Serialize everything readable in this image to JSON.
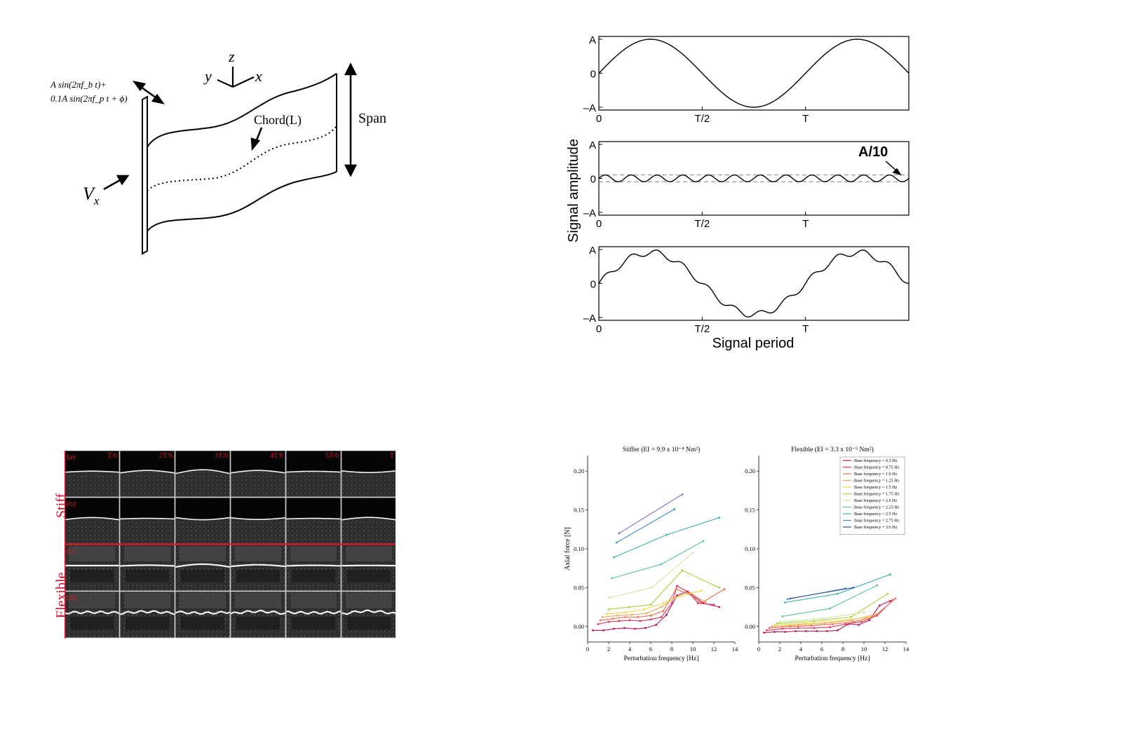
{
  "schematic": {
    "forcing_line1": "A sin(2πf_b t)+",
    "forcing_line2": "0.1A sin(2πf_p t + ϕ)",
    "axis_z": "z",
    "axis_y": "y",
    "axis_x": "x",
    "chord_label": "Chord(L)",
    "span_label": "Span",
    "vx_label": "V",
    "vx_sub": "x"
  },
  "signals": {
    "ylabel": "Signal amplitude",
    "xlabel": "Signal period",
    "y_ticks": [
      "A",
      "0",
      "–A"
    ],
    "x_ticks": [
      "0",
      "T/2",
      "T"
    ],
    "annotation": "A/10"
  },
  "frames": {
    "row_group_labels": [
      "Stiff",
      "Flexible"
    ],
    "row_labels": [
      "(a)",
      "(b)",
      "(c)",
      "(d)"
    ],
    "time_labels": [
      "T/6",
      "2T/6",
      "3T/6",
      "4T/6",
      "5T/6",
      "T"
    ],
    "row_shapes": [
      [
        0.2,
        0.45,
        0.7,
        0.45,
        0.15,
        -0.3
      ],
      [
        0.4,
        0.1,
        -0.4,
        -0.3,
        0.1,
        0.45
      ],
      [
        0.0,
        0.15,
        0.5,
        0.3,
        0.1,
        0.05
      ],
      [
        0.1,
        0.3,
        -0.2,
        0.4,
        -0.1,
        0.5
      ]
    ]
  },
  "chart_data": [
    {
      "type": "line",
      "title": "Stiffer (EI = 9.9 x 10⁻⁴ Nm²)",
      "xlabel": "Perturbation frequency [Hz]",
      "ylabel": "Axial force [N]",
      "xlim": [
        0,
        14
      ],
      "ylim": [
        -0.02,
        0.22
      ],
      "x_ticks": [
        0,
        2,
        4,
        6,
        8,
        10,
        12,
        14
      ],
      "y_ticks": [
        0.0,
        0.05,
        0.1,
        0.15,
        0.2
      ],
      "y_tick_labels": [
        "0.00",
        "0.05",
        "0.10",
        "0.15",
        "0.20"
      ],
      "series": [
        {
          "color": "#b5165b",
          "x": [
            0.5,
            1.5,
            2.5,
            3.5,
            4.5,
            5.5,
            6.5,
            7.5,
            8.5,
            9.5,
            11.0,
            12.5
          ],
          "y": [
            -0.005,
            -0.005,
            -0.003,
            -0.002,
            -0.003,
            -0.002,
            0.002,
            0.015,
            0.04,
            0.045,
            0.03,
            0.025
          ]
        },
        {
          "color": "#e0315d",
          "x": [
            1.0,
            2.0,
            3.0,
            4.0,
            5.0,
            6.0,
            7.0,
            8.0,
            8.5,
            9.5,
            10.5,
            12.0
          ],
          "y": [
            0.003,
            0.006,
            0.007,
            0.008,
            0.007,
            0.009,
            0.012,
            0.03,
            0.052,
            0.045,
            0.03,
            0.028
          ]
        },
        {
          "color": "#ee6a4a",
          "x": [
            1.2,
            2.4,
            3.6,
            4.8,
            6.0,
            7.2,
            8.4,
            9.6,
            10.8,
            13.0
          ],
          "y": [
            0.008,
            0.01,
            0.012,
            0.012,
            0.014,
            0.02,
            0.048,
            0.042,
            0.03,
            0.048
          ]
        },
        {
          "color": "#f4a35c",
          "x": [
            1.4,
            2.8,
            4.2,
            5.6,
            7.0,
            8.4,
            9.8,
            11.2
          ],
          "y": [
            0.012,
            0.014,
            0.015,
            0.017,
            0.025,
            0.038,
            0.043,
            0.031
          ]
        },
        {
          "color": "#ecd94a",
          "x": [
            1.8,
            3.6,
            5.4,
            7.2,
            9.0,
            10.8
          ],
          "y": [
            0.016,
            0.018,
            0.022,
            0.03,
            0.04,
            0.046
          ]
        },
        {
          "color": "#a8d23c",
          "x": [
            2.0,
            4.0,
            6.0,
            9.0,
            12.5
          ],
          "y": [
            0.022,
            0.025,
            0.028,
            0.072,
            0.05
          ]
        },
        {
          "color": "#cfe6a2",
          "x": [
            2.1,
            6.1,
            10.0
          ],
          "y": [
            0.037,
            0.05,
            0.095
          ]
        },
        {
          "color": "#5cc49c",
          "x": [
            2.3,
            7.0,
            11.0
          ],
          "y": [
            0.062,
            0.08,
            0.11
          ]
        },
        {
          "color": "#39b0a7",
          "x": [
            2.5,
            7.5,
            12.5
          ],
          "y": [
            0.089,
            0.118,
            0.14
          ]
        },
        {
          "color": "#3b8fc4",
          "x": [
            2.75,
            8.25
          ],
          "y": [
            0.108,
            0.151
          ]
        },
        {
          "color": "#7f71b8",
          "x": [
            3.0,
            9.0
          ],
          "y": [
            0.12,
            0.17
          ]
        }
      ]
    },
    {
      "type": "line",
      "title": "Flexible (EI = 3.3 x 10⁻⁵ Nm²)",
      "xlabel": "Perturbation frequency [Hz]",
      "ylabel": "",
      "xlim": [
        0,
        14
      ],
      "ylim": [
        -0.02,
        0.22
      ],
      "x_ticks": [
        0,
        2,
        4,
        6,
        8,
        10,
        12,
        14
      ],
      "y_ticks": [
        0.0,
        0.05,
        0.1,
        0.15,
        0.2
      ],
      "y_tick_labels": [
        "0.00",
        "0.05",
        "0.10",
        "0.15",
        "0.20"
      ],
      "legend_position": "top-right",
      "series": [
        {
          "name": "Base frequency = 0.5 Hz",
          "color": "#b5165b",
          "x": [
            0.5,
            1.5,
            2.5,
            3.5,
            4.5,
            5.5,
            6.5,
            7.5,
            8.5,
            9.5,
            10.5,
            11.5,
            12.5
          ],
          "y": [
            -0.008,
            -0.007,
            -0.007,
            -0.006,
            -0.006,
            -0.006,
            -0.006,
            -0.005,
            0.003,
            0.002,
            0.008,
            0.027,
            0.033
          ]
        },
        {
          "name": "Base frequency = 0.75 Hz",
          "color": "#e0315d",
          "x": [
            0.75,
            2.25,
            3.75,
            5.25,
            6.75,
            8.25,
            9.75,
            11.25,
            12.75
          ],
          "y": [
            -0.005,
            -0.003,
            -0.002,
            -0.002,
            -0.001,
            0.003,
            0.006,
            0.014,
            0.034
          ]
        },
        {
          "name": "Base frequency = 1.0 Hz",
          "color": "#ee6a4a",
          "x": [
            1.0,
            3.0,
            5.0,
            7.0,
            9.0,
            11.0,
            13.0
          ],
          "y": [
            -0.002,
            0.0,
            0.001,
            0.003,
            0.006,
            0.013,
            0.036
          ]
        },
        {
          "name": "Base frequency = 1.25 Hz",
          "color": "#f4a35c",
          "x": [
            1.25,
            3.75,
            6.25,
            8.75,
            11.25
          ],
          "y": [
            0.0,
            0.002,
            0.004,
            0.008,
            0.016
          ]
        },
        {
          "name": "Base frequency = 1.5 Hz",
          "color": "#ecd94a",
          "x": [
            1.5,
            4.5,
            7.5,
            10.5
          ],
          "y": [
            0.002,
            0.004,
            0.007,
            0.012
          ]
        },
        {
          "name": "Base frequency = 1.75 Hz",
          "color": "#a8d23c",
          "x": [
            1.75,
            5.25,
            8.75,
            12.25
          ],
          "y": [
            0.004,
            0.007,
            0.012,
            0.042
          ]
        },
        {
          "name": "Base frequency = 2.0 Hz",
          "color": "#cfe6a2",
          "x": [
            2.0,
            6.0,
            10.0
          ],
          "y": [
            0.006,
            0.01,
            0.018
          ]
        },
        {
          "name": "Base frequency = 2.25 Hz",
          "color": "#5cc49c",
          "x": [
            2.25,
            6.75,
            11.25
          ],
          "y": [
            0.013,
            0.023,
            0.053
          ]
        },
        {
          "name": "Base frequency = 2.5 Hz",
          "color": "#39b0a7",
          "x": [
            2.5,
            7.5,
            12.5
          ],
          "y": [
            0.031,
            0.042,
            0.067
          ]
        },
        {
          "name": "Base frequency = 2.75 Hz",
          "color": "#3b8fc4",
          "x": [
            2.75,
            8.25
          ],
          "y": [
            0.035,
            0.049
          ]
        },
        {
          "name": "Base frequency = 3.0 Hz",
          "color": "#3d5a9a",
          "x": [
            3.0,
            9.0
          ],
          "y": [
            0.036,
            0.05
          ]
        }
      ]
    }
  ]
}
